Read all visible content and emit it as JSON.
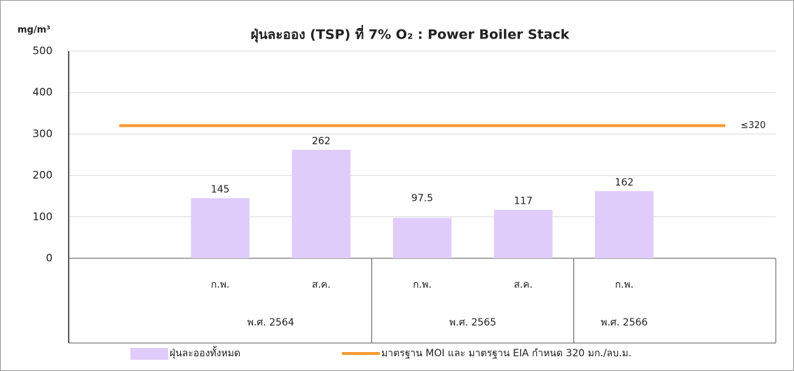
{
  "chart_data": {
    "type": "bar",
    "title": "ฝุ่นละออง (TSP) ที่ 7% O₂ : Power Boiler Stack",
    "y_label": "mg/m³",
    "categories": [
      null,
      "ก.พ.",
      "ส.ค.",
      "ก.พ.",
      "ส.ค.",
      "ก.พ.",
      null
    ],
    "groups": [
      {
        "label": "พ.ศ. 2564",
        "count": 3
      },
      {
        "label": "พ.ศ. 2565",
        "count": 2
      },
      {
        "label": "พ.ศ. 2566",
        "count": 2
      }
    ],
    "series": [
      {
        "name": "ฝุ่นละอองทั้งหมด",
        "type": "bar",
        "color": "#e0ccfb",
        "values": [
          null,
          145,
          262,
          97.5,
          117,
          162,
          null
        ]
      },
      {
        "name": "มาตรฐาน MOI และ มาตรฐาน EIA กำหนด 320 มก./ลบ.ม.",
        "type": "line",
        "color": "#f7982f",
        "values": [
          320,
          320,
          320,
          320,
          320,
          320,
          320
        ],
        "value_labels": [
          null,
          null,
          null,
          null,
          null,
          null,
          "≤320"
        ]
      }
    ],
    "ylim": [
      0,
      500
    ],
    "yticks": [
      0,
      100,
      200,
      300,
      400,
      500
    ],
    "grid": true
  }
}
